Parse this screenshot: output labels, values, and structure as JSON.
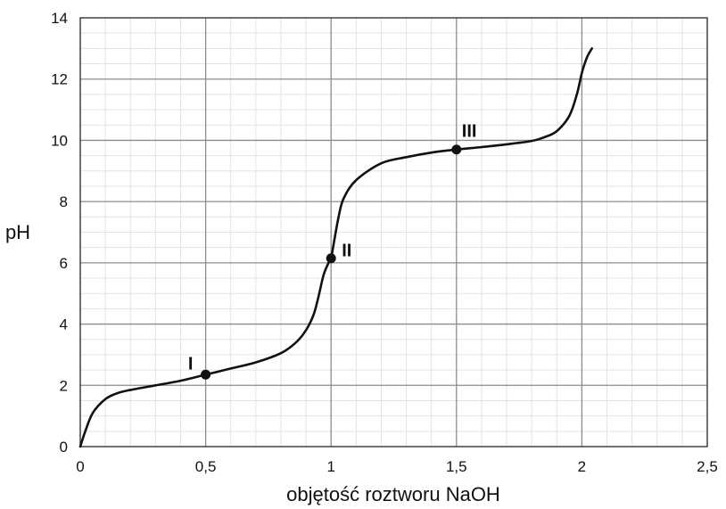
{
  "chart_data": {
    "type": "line",
    "title": "",
    "xlabel": "objętość roztworu NaOH",
    "ylabel": "pH",
    "xlim": [
      0,
      2.5
    ],
    "ylim": [
      0,
      14
    ],
    "x_ticks": [
      "0",
      "0,5",
      "1",
      "1,5",
      "2",
      "2,5"
    ],
    "y_ticks": [
      "0",
      "2",
      "4",
      "6",
      "8",
      "10",
      "12",
      "14"
    ],
    "grid": true,
    "series": [
      {
        "x": [
          0,
          0.02,
          0.05,
          0.1,
          0.15,
          0.2,
          0.3,
          0.4,
          0.5,
          0.6,
          0.7,
          0.8,
          0.86,
          0.9,
          0.93,
          0.95,
          0.97,
          0.99,
          1.0,
          1.01,
          1.03,
          1.05,
          1.1,
          1.2,
          1.3,
          1.4,
          1.5,
          1.6,
          1.7,
          1.8,
          1.85,
          1.9,
          1.95,
          1.98,
          2.0,
          2.02,
          2.04
        ],
        "y": [
          0,
          0.5,
          1.1,
          1.55,
          1.75,
          1.85,
          2.0,
          2.15,
          2.35,
          2.55,
          2.75,
          3.05,
          3.4,
          3.8,
          4.3,
          4.9,
          5.6,
          6.0,
          6.15,
          6.6,
          7.5,
          8.1,
          8.7,
          9.25,
          9.45,
          9.6,
          9.7,
          9.78,
          9.87,
          9.98,
          10.1,
          10.3,
          10.8,
          11.5,
          12.2,
          12.7,
          13.0
        ]
      }
    ],
    "points": [
      {
        "label": "I",
        "x": 0.5,
        "y": 2.35
      },
      {
        "label": "II",
        "x": 1.0,
        "y": 6.15
      },
      {
        "label": "III",
        "x": 1.5,
        "y": 9.7
      }
    ]
  }
}
